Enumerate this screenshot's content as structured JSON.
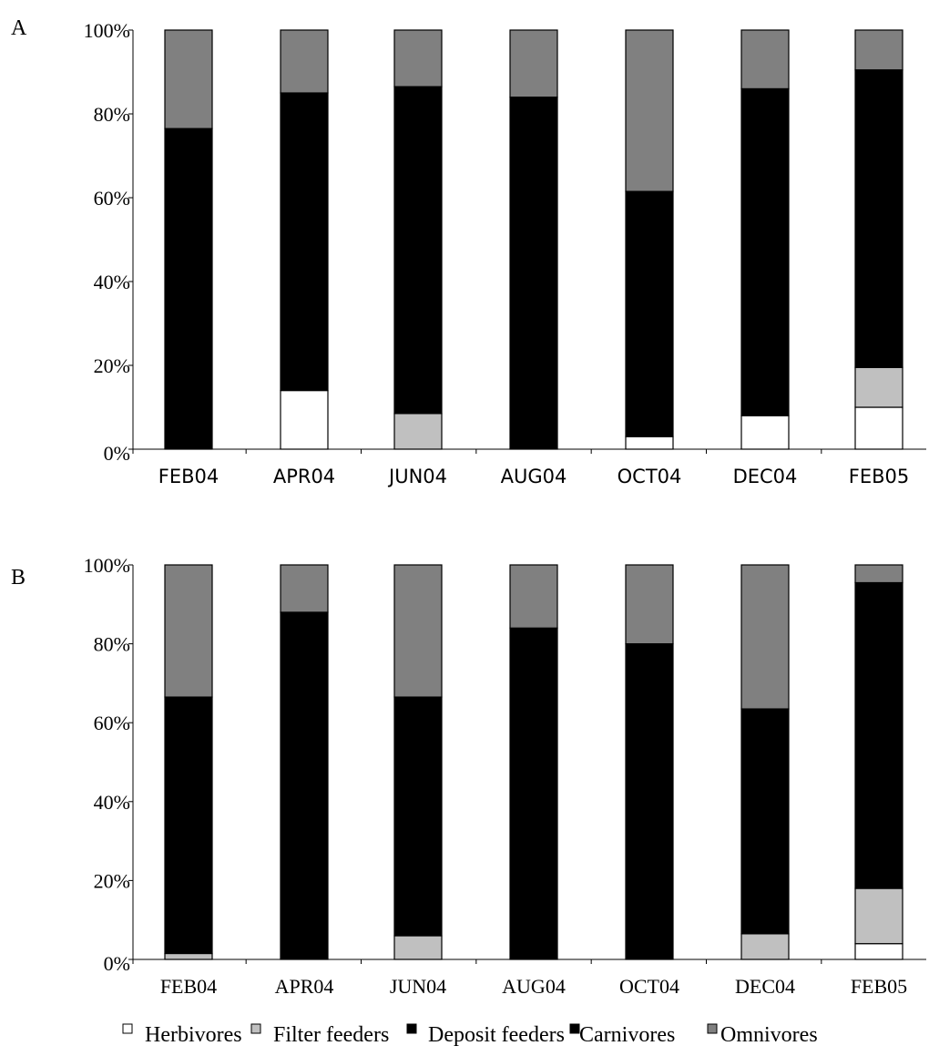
{
  "chart_data": [
    {
      "type": "bar",
      "stacked": true,
      "panel_label": "A",
      "categories": [
        "FEB04",
        "APR04",
        "JUN04",
        "AUG04",
        "OCT04",
        "DEC04",
        "FEB05"
      ],
      "y_tick_labels": [
        "0%",
        "20%",
        "40%",
        "60%",
        "80%",
        "100%"
      ],
      "ylim": [
        0,
        100
      ],
      "series": [
        {
          "name": "Herbivores",
          "values": [
            0,
            14,
            0,
            0,
            3,
            8,
            10
          ]
        },
        {
          "name": "Filter feeders",
          "values": [
            0,
            0,
            8.5,
            0,
            0,
            0,
            9.5
          ]
        },
        {
          "name": "Deposit feeders",
          "values": [
            76.5,
            71,
            78,
            84,
            58.5,
            78,
            71
          ]
        },
        {
          "name": "Carnivores",
          "values": [
            0,
            0,
            0,
            0,
            0,
            0,
            0
          ]
        },
        {
          "name": "Omnivores",
          "values": [
            23.5,
            15,
            13.5,
            16,
            38.5,
            14,
            9.5
          ]
        }
      ],
      "grid": false
    },
    {
      "type": "bar",
      "stacked": true,
      "panel_label": "B",
      "categories": [
        "FEB04",
        "APR04",
        "JUN04",
        "AUG04",
        "OCT04",
        "DEC04",
        "FEB05"
      ],
      "y_tick_labels": [
        "0%",
        "20%",
        "40%",
        "60%",
        "80%",
        "100%"
      ],
      "ylim": [
        0,
        100
      ],
      "series": [
        {
          "name": "Herbivores",
          "values": [
            0,
            0,
            0,
            0,
            0,
            0,
            4
          ]
        },
        {
          "name": "Filter feeders",
          "values": [
            1.5,
            0,
            6,
            0,
            0,
            6.5,
            14
          ]
        },
        {
          "name": "Deposit feeders",
          "values": [
            65,
            88,
            60.5,
            84,
            80,
            57,
            77.5
          ]
        },
        {
          "name": "Carnivores",
          "values": [
            0,
            0,
            0,
            0,
            0,
            0,
            0
          ]
        },
        {
          "name": "Omnivores",
          "values": [
            33.5,
            12,
            33.5,
            16,
            20,
            36.5,
            4.5
          ]
        }
      ],
      "grid": false
    }
  ],
  "legend": {
    "placement": "bottom",
    "items": [
      {
        "label": "Herbivores",
        "color": "#ffffff"
      },
      {
        "label": "Filter feeders",
        "color": "#c0c0c0"
      },
      {
        "label": "Deposit feeders",
        "color": "#000000"
      },
      {
        "label": "Carnivores",
        "color": "#000000"
      },
      {
        "label": "Omnivores",
        "color": "#808080"
      }
    ]
  },
  "colors": {
    "Herbivores": "#ffffff",
    "Filter feeders": "#c0c0c0",
    "Deposit feeders": "#000000",
    "Carnivores": "#000000",
    "Omnivores": "#808080"
  }
}
